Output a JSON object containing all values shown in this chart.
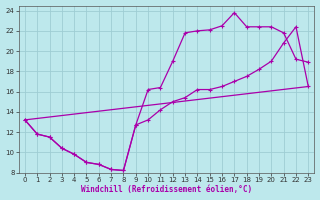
{
  "xlabel": "Windchill (Refroidissement éolien,°C)",
  "ylabel": "",
  "xlim": [
    -0.5,
    23.5
  ],
  "ylim": [
    8,
    24.5
  ],
  "xticks": [
    0,
    1,
    2,
    3,
    4,
    5,
    6,
    7,
    8,
    9,
    10,
    11,
    12,
    13,
    14,
    15,
    16,
    17,
    18,
    19,
    20,
    21,
    22,
    23
  ],
  "yticks": [
    8,
    10,
    12,
    14,
    16,
    18,
    20,
    22,
    24
  ],
  "background_color": "#bde8ec",
  "grid_color": "#9ecdd4",
  "line_color": "#aa00aa",
  "line1_x": [
    0,
    1,
    2,
    3,
    4,
    5,
    6,
    7,
    8,
    9,
    10,
    11,
    12,
    13,
    14,
    15,
    16,
    17,
    18,
    19,
    20,
    21,
    22,
    23
  ],
  "line1_y": [
    13.2,
    11.8,
    11.5,
    10.4,
    9.8,
    9.0,
    8.8,
    8.3,
    8.2,
    12.7,
    16.2,
    16.4,
    19.0,
    21.8,
    22.0,
    22.1,
    22.5,
    23.8,
    22.4,
    22.4,
    22.4,
    21.8,
    19.2,
    18.9
  ],
  "line2_x": [
    0,
    1,
    2,
    3,
    4,
    5,
    6,
    7,
    8,
    9,
    10,
    11,
    12,
    13,
    14,
    15,
    16,
    17,
    18,
    19,
    20,
    21,
    22,
    23
  ],
  "line2_y": [
    13.2,
    11.8,
    11.5,
    10.4,
    9.8,
    9.0,
    8.8,
    8.3,
    8.2,
    12.7,
    13.2,
    14.2,
    15.0,
    15.4,
    16.2,
    16.2,
    16.5,
    17.0,
    17.5,
    18.2,
    19.0,
    20.8,
    22.4,
    16.5
  ],
  "line3_x": [
    0,
    23
  ],
  "line3_y": [
    13.2,
    16.5
  ],
  "marker": "+",
  "markersize": 3,
  "markeredgewidth": 0.8,
  "linewidth": 0.9
}
